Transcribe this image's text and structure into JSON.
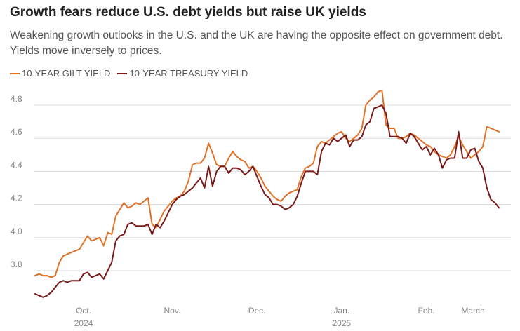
{
  "chart_data": {
    "type": "line",
    "title": "Growth fears reduce U.S. debt yields but raise UK yields",
    "subtitle": "Weakening growth outlooks in the U.S. and the UK are having the opposite effect on government debt. Yields move inversely to prices.",
    "xlabel": "",
    "ylabel": "",
    "ylim": [
      3.6,
      4.9
    ],
    "yticks": [
      "3.8",
      "4.0",
      "4.2",
      "4.4",
      "4.6",
      "4.8"
    ],
    "yticks_values": [
      3.8,
      4.0,
      4.2,
      4.4,
      4.6,
      4.8
    ],
    "xlim": [
      0,
      115
    ],
    "xticks": [
      {
        "x": 12,
        "label": "Oct.",
        "sub": "2024"
      },
      {
        "x": 34,
        "label": "Nov.",
        "sub": ""
      },
      {
        "x": 55,
        "label": "Dec.",
        "sub": ""
      },
      {
        "x": 76,
        "label": "Jan.",
        "sub": "2025"
      },
      {
        "x": 97,
        "label": "Feb.",
        "sub": ""
      },
      {
        "x": 115,
        "label": "March",
        "sub": ""
      }
    ],
    "series": [
      {
        "name": "10-YEAR GILT YIELD",
        "color": "#e0722a",
        "points": [
          [
            0,
            3.77
          ],
          [
            1,
            3.78
          ],
          [
            2,
            3.77
          ],
          [
            3,
            3.77
          ],
          [
            4,
            3.76
          ],
          [
            5,
            3.77
          ],
          [
            6,
            3.85
          ],
          [
            7,
            3.89
          ],
          [
            8,
            3.9
          ],
          [
            9,
            3.91
          ],
          [
            10,
            3.92
          ],
          [
            11,
            3.93
          ],
          [
            12,
            3.97
          ],
          [
            13,
            4.01
          ],
          [
            14,
            3.98
          ],
          [
            15,
            3.99
          ],
          [
            16,
            4.0
          ],
          [
            17,
            3.95
          ],
          [
            18,
            4.03
          ],
          [
            19,
            4.02
          ],
          [
            20,
            4.13
          ],
          [
            21,
            4.17
          ],
          [
            22,
            4.21
          ],
          [
            23,
            4.18
          ],
          [
            24,
            4.19
          ],
          [
            25,
            4.21
          ],
          [
            26,
            4.2
          ],
          [
            27,
            4.22
          ],
          [
            28,
            4.24
          ],
          [
            29,
            4.08
          ],
          [
            30,
            4.06
          ],
          [
            31,
            4.11
          ],
          [
            32,
            4.16
          ],
          [
            33,
            4.19
          ],
          [
            34,
            4.22
          ],
          [
            35,
            4.24
          ],
          [
            36,
            4.25
          ],
          [
            37,
            4.28
          ],
          [
            38,
            4.34
          ],
          [
            39,
            4.44
          ],
          [
            40,
            4.45
          ],
          [
            41,
            4.45
          ],
          [
            42,
            4.48
          ],
          [
            43,
            4.57
          ],
          [
            44,
            4.51
          ],
          [
            45,
            4.44
          ],
          [
            46,
            4.43
          ],
          [
            47,
            4.43
          ],
          [
            48,
            4.48
          ],
          [
            49,
            4.52
          ],
          [
            50,
            4.49
          ],
          [
            51,
            4.47
          ],
          [
            52,
            4.46
          ],
          [
            53,
            4.42
          ],
          [
            54,
            4.43
          ],
          [
            55,
            4.4
          ],
          [
            56,
            4.36
          ],
          [
            57,
            4.31
          ],
          [
            58,
            4.28
          ],
          [
            59,
            4.25
          ],
          [
            60,
            4.23
          ],
          [
            61,
            4.22
          ],
          [
            62,
            4.25
          ],
          [
            63,
            4.27
          ],
          [
            64,
            4.28
          ],
          [
            65,
            4.29
          ],
          [
            66,
            4.37
          ],
          [
            67,
            4.42
          ],
          [
            68,
            4.43
          ],
          [
            69,
            4.45
          ],
          [
            70,
            4.55
          ],
          [
            71,
            4.58
          ],
          [
            72,
            4.57
          ],
          [
            73,
            4.59
          ],
          [
            74,
            4.61
          ],
          [
            75,
            4.63
          ],
          [
            76,
            4.64
          ],
          [
            77,
            4.6
          ],
          [
            78,
            4.58
          ],
          [
            79,
            4.6
          ],
          [
            80,
            4.62
          ],
          [
            81,
            4.66
          ],
          [
            82,
            4.8
          ],
          [
            83,
            4.83
          ],
          [
            84,
            4.85
          ],
          [
            85,
            4.88
          ],
          [
            86,
            4.89
          ],
          [
            87,
            4.68
          ],
          [
            88,
            4.66
          ],
          [
            89,
            4.66
          ],
          [
            90,
            4.6
          ],
          [
            91,
            4.6
          ],
          [
            92,
            4.61
          ],
          [
            93,
            4.63
          ],
          [
            94,
            4.62
          ],
          [
            95,
            4.6
          ],
          [
            96,
            4.58
          ],
          [
            97,
            4.56
          ],
          [
            98,
            4.55
          ],
          [
            99,
            4.52
          ],
          [
            100,
            4.5
          ],
          [
            101,
            4.49
          ],
          [
            102,
            4.48
          ],
          [
            103,
            4.5
          ],
          [
            104,
            4.55
          ],
          [
            105,
            4.61
          ],
          [
            106,
            4.56
          ],
          [
            107,
            4.52
          ],
          [
            108,
            4.48
          ],
          [
            109,
            4.5
          ],
          [
            110,
            4.52
          ],
          [
            111,
            4.55
          ],
          [
            112,
            4.67
          ],
          [
            113,
            4.66
          ],
          [
            114,
            4.65
          ],
          [
            115,
            4.64
          ]
        ]
      },
      {
        "name": "10-YEAR TREASURY YIELD",
        "color": "#7a1a1a",
        "points": [
          [
            0,
            3.66
          ],
          [
            1,
            3.65
          ],
          [
            2,
            3.64
          ],
          [
            3,
            3.65
          ],
          [
            4,
            3.67
          ],
          [
            5,
            3.7
          ],
          [
            6,
            3.73
          ],
          [
            7,
            3.74
          ],
          [
            8,
            3.73
          ],
          [
            9,
            3.74
          ],
          [
            10,
            3.74
          ],
          [
            11,
            3.74
          ],
          [
            12,
            3.78
          ],
          [
            13,
            3.79
          ],
          [
            14,
            3.76
          ],
          [
            15,
            3.77
          ],
          [
            16,
            3.78
          ],
          [
            17,
            3.75
          ],
          [
            18,
            3.8
          ],
          [
            19,
            3.85
          ],
          [
            20,
            3.98
          ],
          [
            21,
            4.01
          ],
          [
            22,
            4.02
          ],
          [
            23,
            4.08
          ],
          [
            24,
            4.09
          ],
          [
            25,
            4.07
          ],
          [
            26,
            4.07
          ],
          [
            27,
            4.07
          ],
          [
            28,
            4.08
          ],
          [
            29,
            4.02
          ],
          [
            30,
            4.08
          ],
          [
            31,
            4.06
          ],
          [
            32,
            4.1
          ],
          [
            33,
            4.15
          ],
          [
            34,
            4.2
          ],
          [
            35,
            4.23
          ],
          [
            36,
            4.25
          ],
          [
            37,
            4.26
          ],
          [
            38,
            4.28
          ],
          [
            39,
            4.3
          ],
          [
            40,
            4.33
          ],
          [
            41,
            4.36
          ],
          [
            42,
            4.3
          ],
          [
            43,
            4.43
          ],
          [
            44,
            4.31
          ],
          [
            45,
            4.4
          ],
          [
            46,
            4.43
          ],
          [
            47,
            4.43
          ],
          [
            48,
            4.39
          ],
          [
            49,
            4.42
          ],
          [
            50,
            4.42
          ],
          [
            51,
            4.41
          ],
          [
            52,
            4.38
          ],
          [
            53,
            4.4
          ],
          [
            54,
            4.43
          ],
          [
            55,
            4.37
          ],
          [
            56,
            4.31
          ],
          [
            57,
            4.26
          ],
          [
            58,
            4.24
          ],
          [
            59,
            4.2
          ],
          [
            60,
            4.2
          ],
          [
            61,
            4.19
          ],
          [
            62,
            4.17
          ],
          [
            63,
            4.18
          ],
          [
            64,
            4.2
          ],
          [
            65,
            4.25
          ],
          [
            66,
            4.33
          ],
          [
            67,
            4.4
          ],
          [
            68,
            4.4
          ],
          [
            69,
            4.4
          ],
          [
            70,
            4.38
          ],
          [
            71,
            4.52
          ],
          [
            72,
            4.57
          ],
          [
            73,
            4.56
          ],
          [
            74,
            4.6
          ],
          [
            75,
            4.58
          ],
          [
            76,
            4.6
          ],
          [
            77,
            4.62
          ],
          [
            78,
            4.55
          ],
          [
            79,
            4.59
          ],
          [
            80,
            4.59
          ],
          [
            81,
            4.61
          ],
          [
            82,
            4.68
          ],
          [
            83,
            4.7
          ],
          [
            84,
            4.78
          ],
          [
            85,
            4.79
          ],
          [
            86,
            4.8
          ],
          [
            87,
            4.75
          ],
          [
            88,
            4.61
          ],
          [
            89,
            4.61
          ],
          [
            90,
            4.61
          ],
          [
            91,
            4.6
          ],
          [
            92,
            4.57
          ],
          [
            93,
            4.63
          ],
          [
            94,
            4.61
          ],
          [
            95,
            4.57
          ],
          [
            96,
            4.53
          ],
          [
            97,
            4.55
          ],
          [
            98,
            4.5
          ],
          [
            99,
            4.54
          ],
          [
            100,
            4.5
          ],
          [
            101,
            4.42
          ],
          [
            102,
            4.47
          ],
          [
            103,
            4.48
          ],
          [
            104,
            4.48
          ],
          [
            105,
            4.64
          ],
          [
            106,
            4.48
          ],
          [
            107,
            4.48
          ],
          [
            108,
            4.53
          ],
          [
            109,
            4.54
          ],
          [
            110,
            4.46
          ],
          [
            111,
            4.42
          ],
          [
            112,
            4.3
          ],
          [
            113,
            4.23
          ],
          [
            114,
            4.21
          ],
          [
            115,
            4.18
          ]
        ]
      }
    ]
  }
}
